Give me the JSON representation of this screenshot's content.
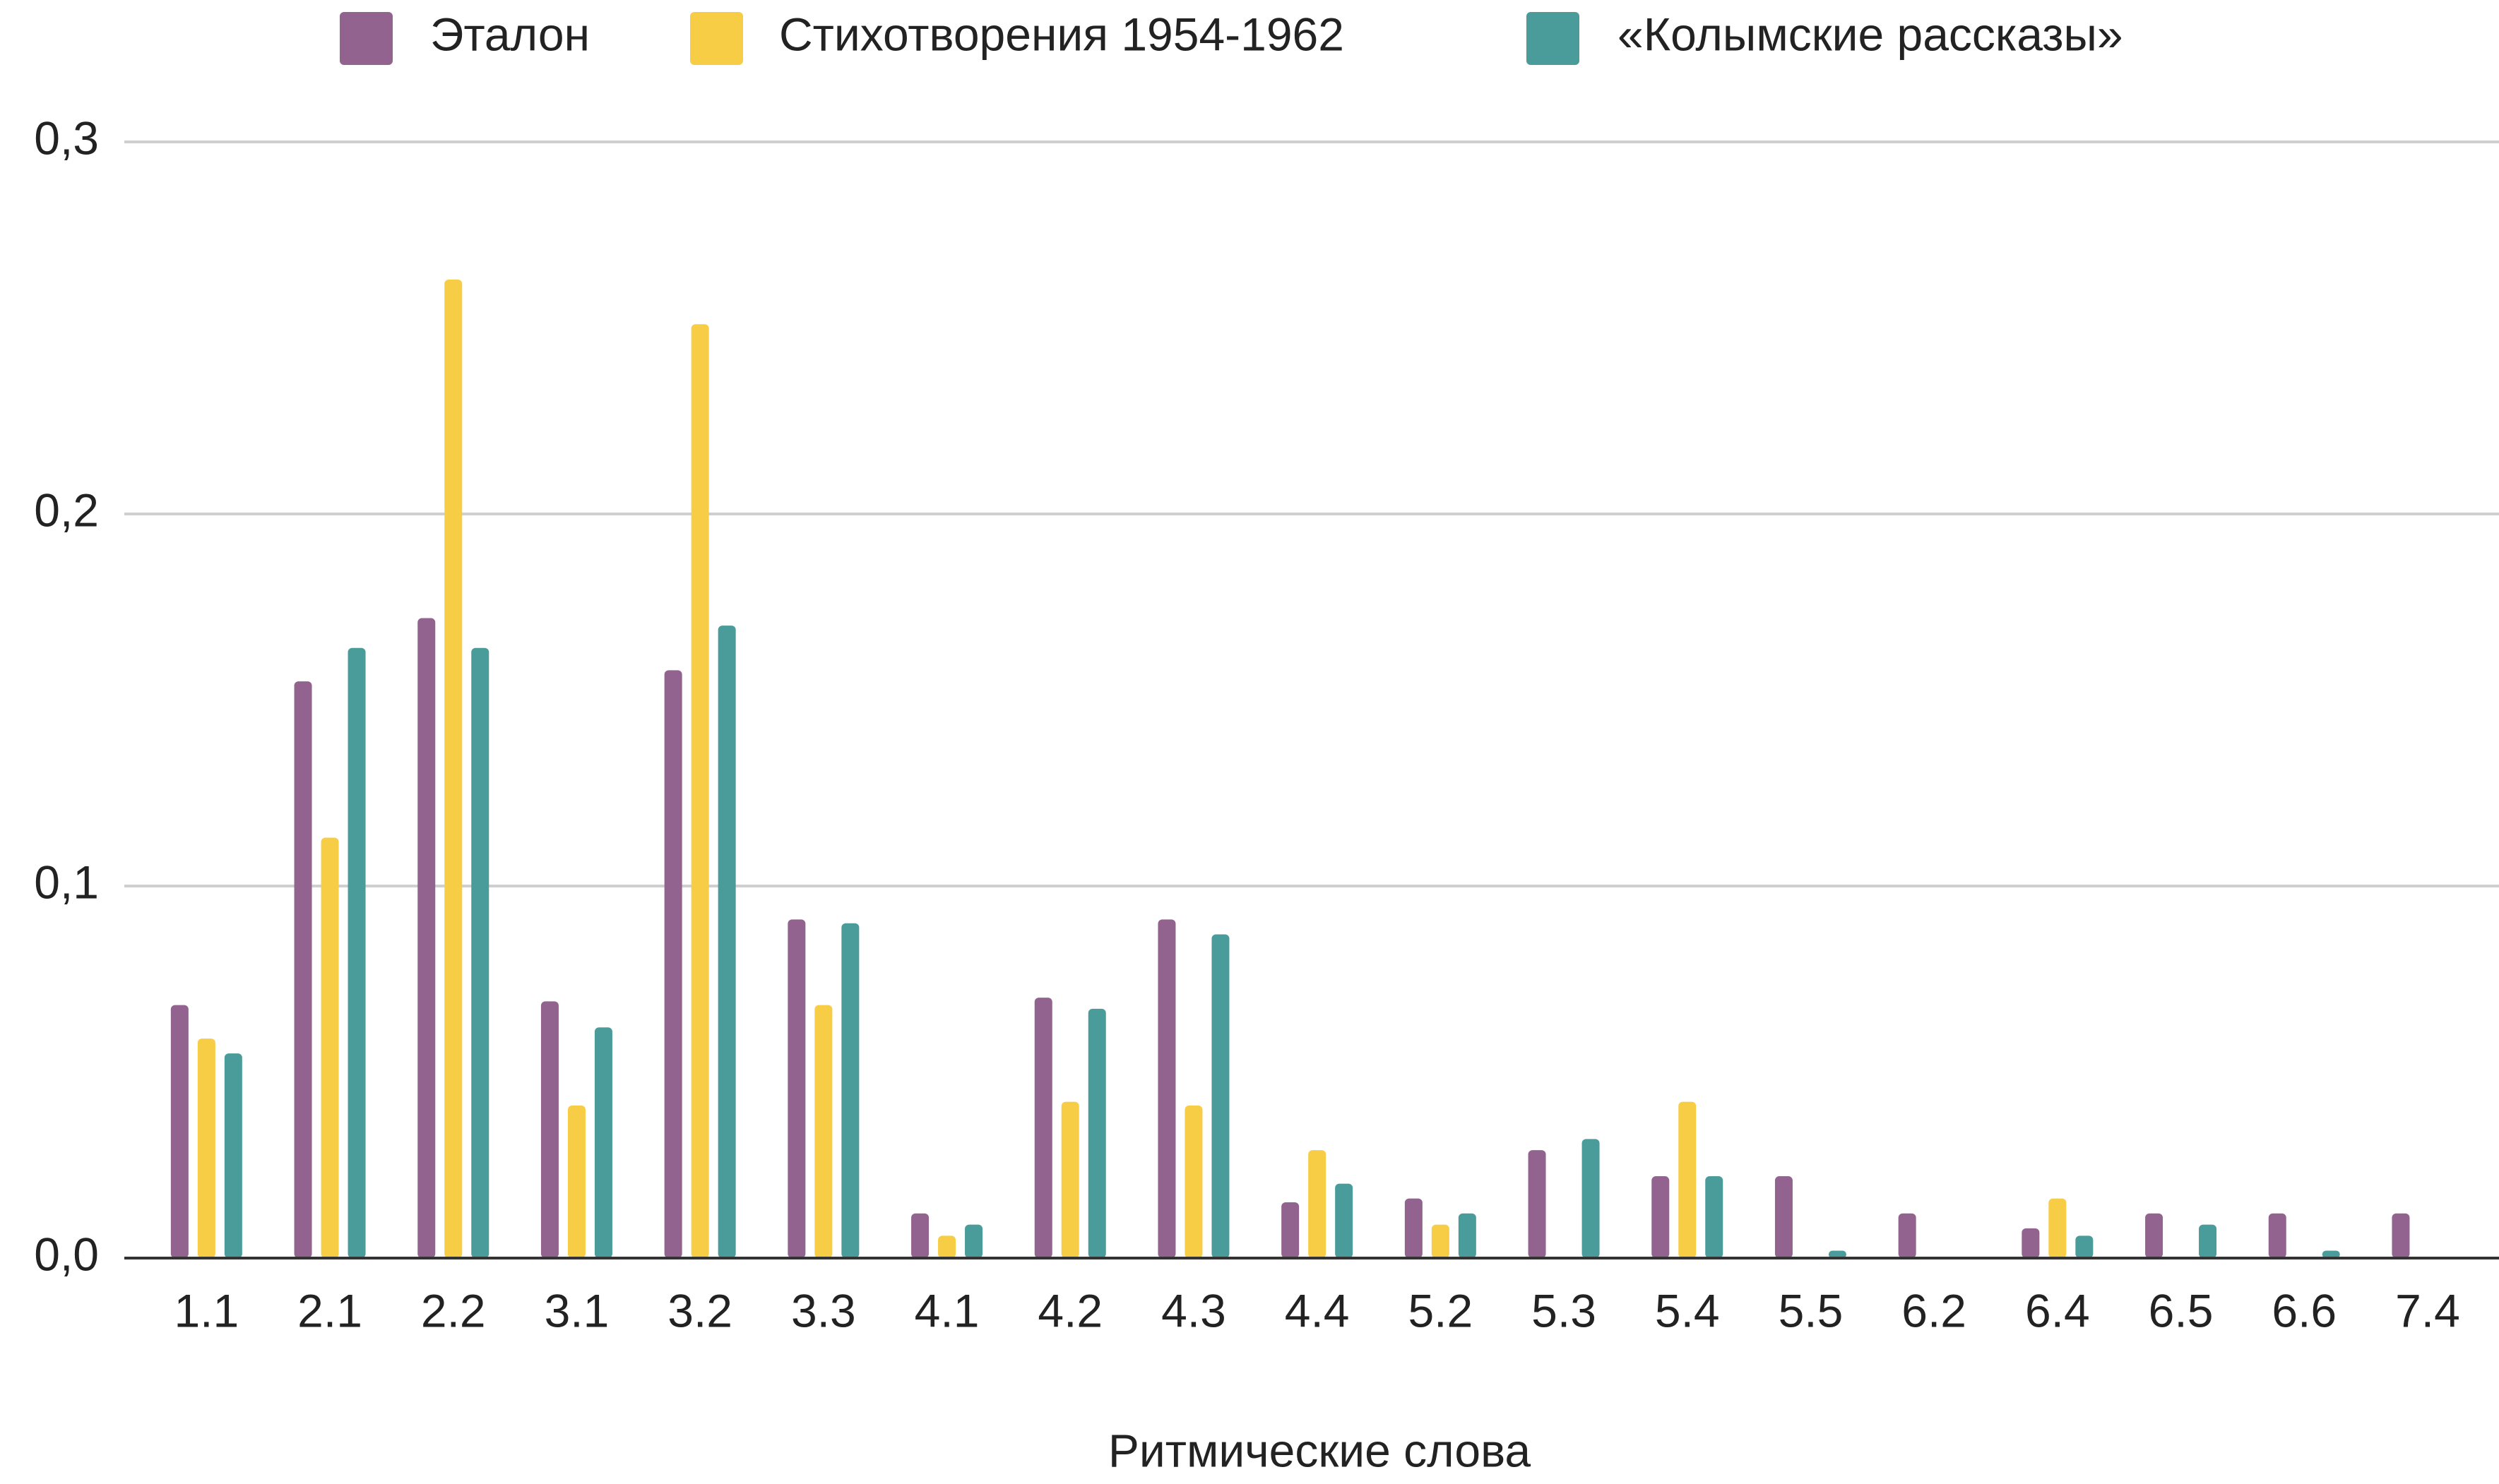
{
  "chart_data": {
    "type": "bar",
    "x_label": "Ритмические слова",
    "categories": [
      "1.1",
      "2.1",
      "2.2",
      "3.1",
      "3.2",
      "3.3",
      "4.1",
      "4.2",
      "4.3",
      "4.4",
      "5.2",
      "5.3",
      "5.4",
      "5.5",
      "6.2",
      "6.4",
      "6.5",
      "6.6",
      "7.4"
    ],
    "series": [
      {
        "name": "Эталон",
        "color": "#93638f",
        "values": [
          0.068,
          0.155,
          0.172,
          0.069,
          0.158,
          0.091,
          0.012,
          0.07,
          0.091,
          0.015,
          0.016,
          0.029,
          0.022,
          0.022,
          0.012,
          0.008,
          0.012,
          0.012,
          0.012
        ]
      },
      {
        "name": "Стихотворения 1954-1962",
        "color": "#f7cd46",
        "values": [
          0.059,
          0.113,
          0.263,
          0.041,
          0.251,
          0.068,
          0.006,
          0.042,
          0.041,
          0.029,
          0.009,
          0,
          0.042,
          0,
          0,
          0.016,
          0,
          0,
          0
        ]
      },
      {
        "name": "«Колымские рассказы»",
        "color": "#4a9c9a",
        "values": [
          0.055,
          0.164,
          0.164,
          0.062,
          0.17,
          0.09,
          0.009,
          0.067,
          0.087,
          0.02,
          0.012,
          0.032,
          0.022,
          0.002,
          0,
          0.006,
          0.009,
          0.002,
          0
        ]
      }
    ],
    "ylim": [
      0,
      0.3
    ],
    "yticks": [
      {
        "value": 0,
        "label": "0,0"
      },
      {
        "value": 0.1,
        "label": "0,1"
      },
      {
        "value": 0.2,
        "label": "0,2"
      },
      {
        "value": 0.3,
        "label": "0,3"
      }
    ],
    "grid": true,
    "legend": "top"
  }
}
